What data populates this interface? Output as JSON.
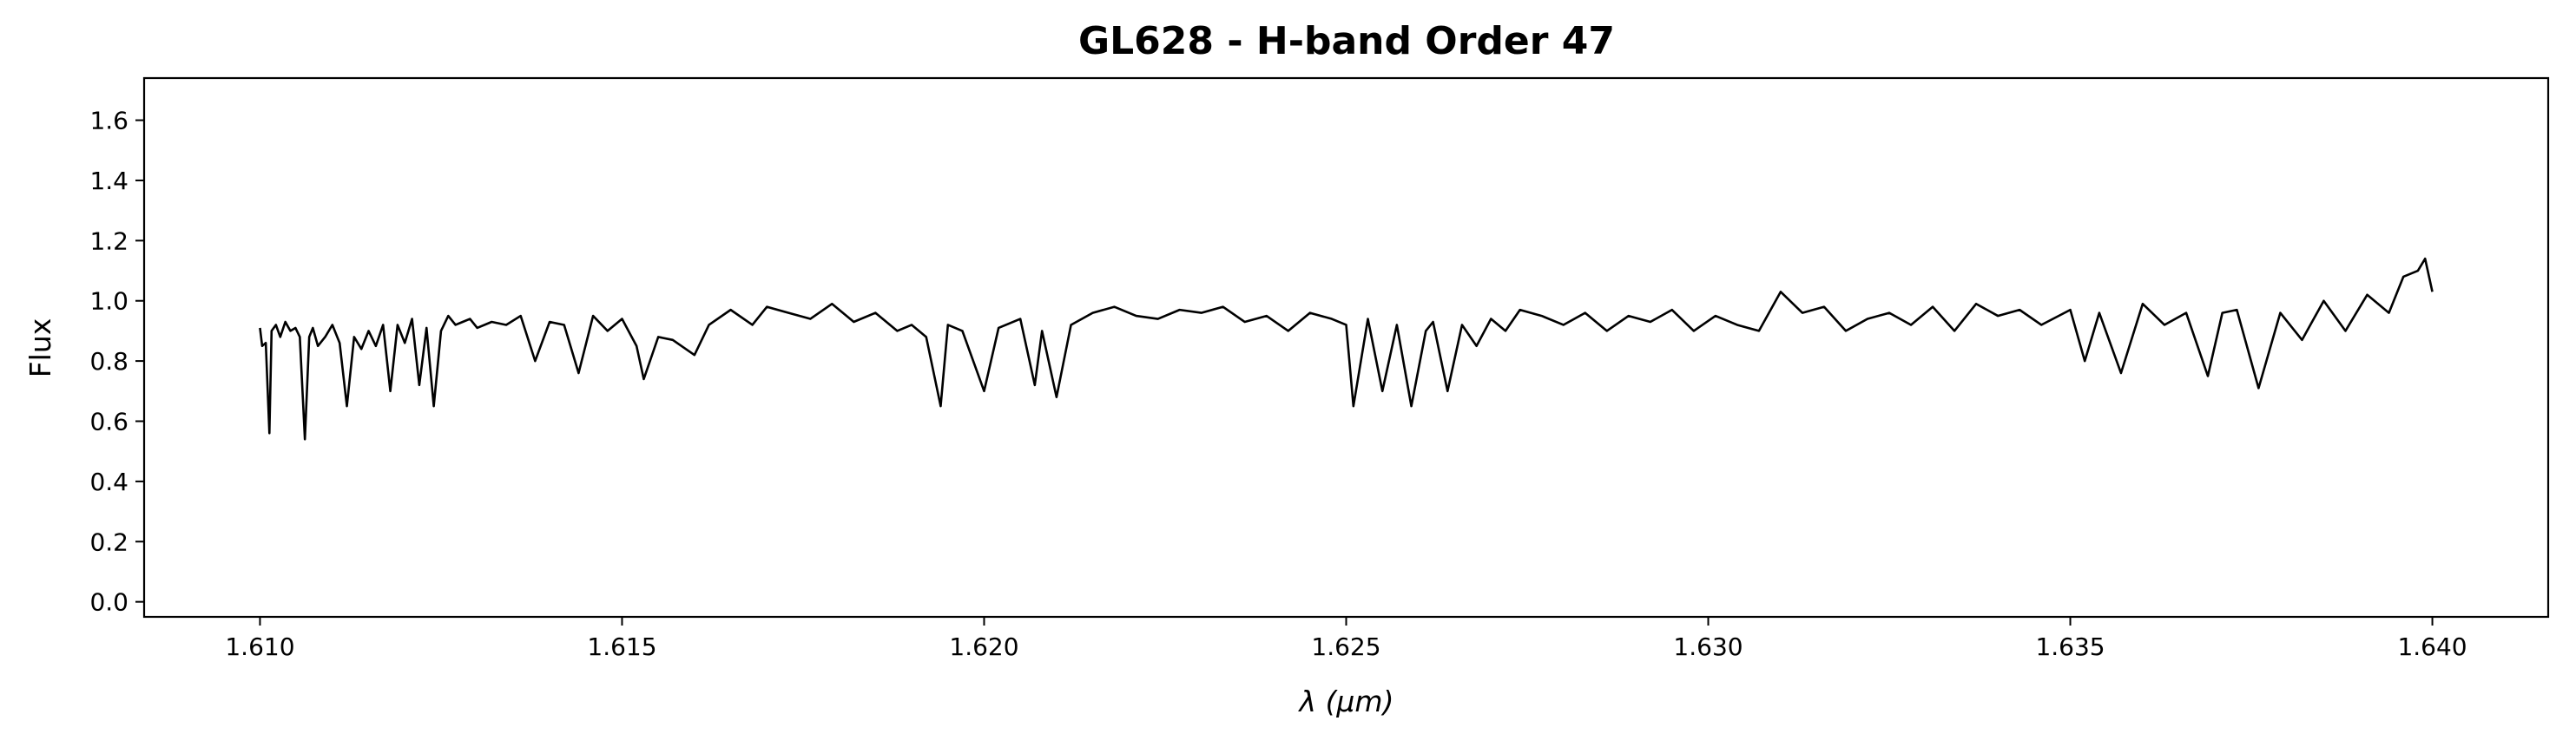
{
  "chart_data": {
    "type": "line",
    "title": "GL628 - H-band Order 47",
    "xlabel_symbol": "λ",
    "xlabel_unit": "(μm)",
    "ylabel": "Flux",
    "xlim": [
      1.6084,
      1.6416
    ],
    "ylim": [
      -0.05,
      1.74
    ],
    "x_ticks": [
      1.61,
      1.615,
      1.62,
      1.625,
      1.63,
      1.635,
      1.64
    ],
    "x_tick_labels": [
      "1.610",
      "1.615",
      "1.620",
      "1.625",
      "1.630",
      "1.635",
      "1.640"
    ],
    "y_ticks": [
      0.0,
      0.2,
      0.4,
      0.6,
      0.8,
      1.0,
      1.2,
      1.4,
      1.6
    ],
    "y_tick_labels": [
      "0.0",
      "0.2",
      "0.4",
      "0.6",
      "0.8",
      "1.0",
      "1.2",
      "1.4",
      "1.6"
    ],
    "grid": false,
    "line_color": "#000000",
    "series": [
      {
        "x": [
          1.61,
          1.61003,
          1.61008,
          1.61013,
          1.61016,
          1.61022,
          1.61028,
          1.61035,
          1.61042,
          1.61049,
          1.61055,
          1.61062,
          1.61068,
          1.61073,
          1.6108,
          1.6109,
          1.611,
          1.6111,
          1.6112,
          1.6113,
          1.6114,
          1.6115,
          1.6116,
          1.6117,
          1.6118,
          1.6119,
          1.612,
          1.6121,
          1.6122,
          1.6123,
          1.6124,
          1.6125,
          1.6126,
          1.6127,
          1.6128,
          1.6129,
          1.613,
          1.6132,
          1.6134,
          1.6136,
          1.6138,
          1.614,
          1.6142,
          1.6144,
          1.6146,
          1.6148,
          1.615,
          1.6152,
          1.6153,
          1.6155,
          1.6157,
          1.616,
          1.6162,
          1.6165,
          1.6168,
          1.617,
          1.6173,
          1.6176,
          1.6179,
          1.6182,
          1.6185,
          1.6188,
          1.619,
          1.6192,
          1.6194,
          1.6195,
          1.6197,
          1.62,
          1.6202,
          1.6205,
          1.6207,
          1.6208,
          1.621,
          1.6212,
          1.6215,
          1.6218,
          1.6221,
          1.6224,
          1.6227,
          1.623,
          1.6233,
          1.6236,
          1.6239,
          1.6242,
          1.6245,
          1.6248,
          1.625,
          1.6251,
          1.6253,
          1.6255,
          1.6257,
          1.6259,
          1.6261,
          1.6262,
          1.6264,
          1.6266,
          1.6268,
          1.627,
          1.6272,
          1.6274,
          1.6277,
          1.628,
          1.6283,
          1.6286,
          1.6289,
          1.6292,
          1.6295,
          1.6298,
          1.6301,
          1.6304,
          1.6307,
          1.631,
          1.6313,
          1.6316,
          1.6319,
          1.6322,
          1.6325,
          1.6328,
          1.6331,
          1.6334,
          1.6337,
          1.634,
          1.6343,
          1.6346,
          1.635,
          1.6352,
          1.6354,
          1.6357,
          1.636,
          1.6363,
          1.6366,
          1.6369,
          1.6371,
          1.6373,
          1.6376,
          1.6379,
          1.6382,
          1.6385,
          1.6388,
          1.6391,
          1.6394,
          1.6396,
          1.6398,
          1.6399,
          1.64
        ],
        "y": [
          0.91,
          0.85,
          0.86,
          0.56,
          0.9,
          0.92,
          0.88,
          0.93,
          0.9,
          0.91,
          0.88,
          0.54,
          0.88,
          0.91,
          0.85,
          0.88,
          0.92,
          0.86,
          0.65,
          0.88,
          0.84,
          0.9,
          0.85,
          0.92,
          0.7,
          0.92,
          0.86,
          0.94,
          0.72,
          0.91,
          0.65,
          0.9,
          0.95,
          0.92,
          0.93,
          0.94,
          0.91,
          0.93,
          0.92,
          0.95,
          0.8,
          0.93,
          0.92,
          0.76,
          0.95,
          0.9,
          0.94,
          0.85,
          0.74,
          0.88,
          0.87,
          0.82,
          0.92,
          0.97,
          0.92,
          0.98,
          0.96,
          0.94,
          0.99,
          0.93,
          0.96,
          0.9,
          0.92,
          0.88,
          0.65,
          0.92,
          0.9,
          0.7,
          0.91,
          0.94,
          0.72,
          0.9,
          0.68,
          0.92,
          0.96,
          0.98,
          0.95,
          0.94,
          0.97,
          0.96,
          0.98,
          0.93,
          0.95,
          0.9,
          0.96,
          0.94,
          0.92,
          0.65,
          0.94,
          0.7,
          0.92,
          0.65,
          0.9,
          0.93,
          0.7,
          0.92,
          0.85,
          0.94,
          0.9,
          0.97,
          0.95,
          0.92,
          0.96,
          0.9,
          0.95,
          0.93,
          0.97,
          0.9,
          0.95,
          0.92,
          0.9,
          1.03,
          0.96,
          0.98,
          0.9,
          0.94,
          0.96,
          0.92,
          0.98,
          0.9,
          0.99,
          0.95,
          0.97,
          0.92,
          0.97,
          0.8,
          0.96,
          0.76,
          0.99,
          0.92,
          0.96,
          0.75,
          0.96,
          0.97,
          0.71,
          0.96,
          0.87,
          1.0,
          0.9,
          1.02,
          0.96,
          1.08,
          1.1,
          1.14,
          1.03
        ]
      }
    ]
  }
}
